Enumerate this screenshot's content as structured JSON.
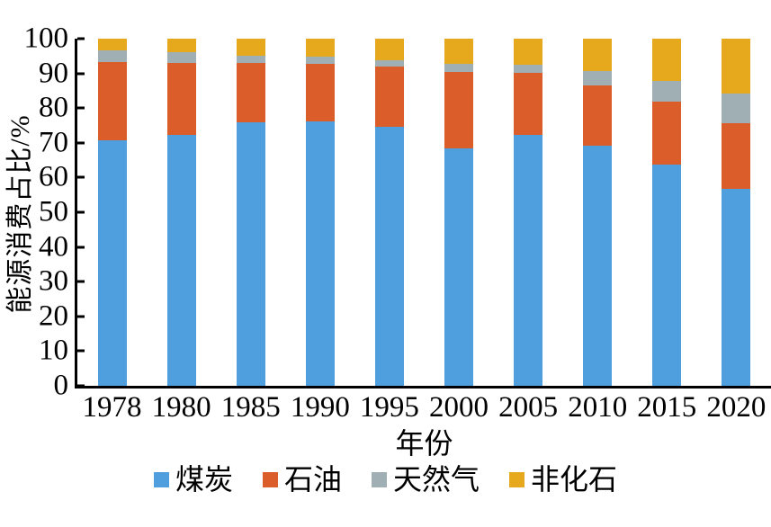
{
  "chart_data": {
    "type": "bar",
    "stacked": true,
    "title": "",
    "xlabel": "年份",
    "ylabel": "能源消费占比/%",
    "ylim": [
      0,
      100
    ],
    "yticks": [
      0,
      10,
      20,
      30,
      40,
      50,
      60,
      70,
      80,
      90,
      100
    ],
    "grid": false,
    "legend_position": "bottom",
    "categories": [
      "1978",
      "1980",
      "1985",
      "1990",
      "1995",
      "2000",
      "2005",
      "2010",
      "2015",
      "2020"
    ],
    "series": [
      {
        "key": "coal",
        "name": "煤炭",
        "color": "#4F9FDE",
        "values": [
          70.7,
          72.2,
          75.8,
          76.2,
          74.6,
          68.5,
          72.4,
          69.2,
          63.7,
          56.8
        ]
      },
      {
        "key": "oil",
        "name": "石油",
        "color": "#DA5D2A",
        "values": [
          22.7,
          20.7,
          17.1,
          16.6,
          17.5,
          22.0,
          17.8,
          17.4,
          18.3,
          18.9
        ]
      },
      {
        "key": "gas",
        "name": "天然气",
        "color": "#9FAFB4",
        "values": [
          3.2,
          3.1,
          2.2,
          2.1,
          1.8,
          2.2,
          2.4,
          4.0,
          5.9,
          8.4
        ]
      },
      {
        "key": "nonfossil",
        "name": "非化石",
        "color": "#E6A91E",
        "values": [
          3.4,
          4.0,
          4.9,
          5.1,
          6.1,
          7.3,
          7.4,
          9.4,
          12.1,
          15.9
        ]
      }
    ]
  }
}
